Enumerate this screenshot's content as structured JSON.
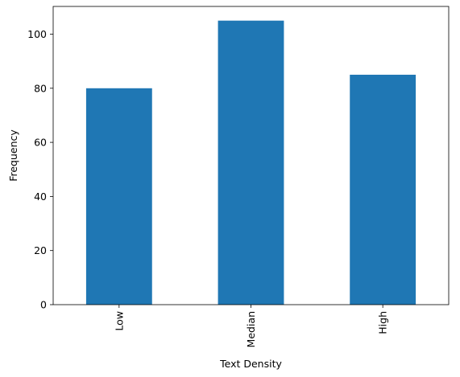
{
  "colors": {
    "bar": "#1f77b4",
    "axis": "#000000",
    "background": "#ffffff"
  },
  "chart_data": {
    "type": "bar",
    "categories": [
      "Low",
      "Median",
      "High"
    ],
    "values": [
      80,
      105,
      85
    ],
    "xlabel": "Text Density",
    "ylabel": "Frequency",
    "ylim": [
      0,
      110.25
    ],
    "yticks": [
      0,
      20,
      40,
      60,
      80,
      100
    ],
    "x_tick_rotation": "vertical",
    "grid": false,
    "legend": "none"
  }
}
